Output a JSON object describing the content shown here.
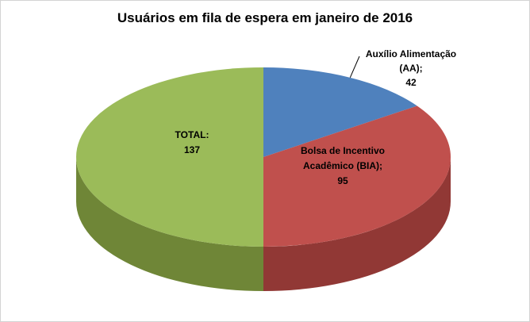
{
  "chart_data": {
    "type": "pie",
    "effect": "3d",
    "title": "Usuários em fila de espera em janeiro de 2016",
    "start_angle_deg": -90,
    "direction": "clockwise",
    "legend": "none",
    "background_color": "#FFFFFF",
    "border_color": "#D3D3D3",
    "slices": [
      {
        "id": "aa",
        "name": "Auxílio Alimentação (AA)",
        "value": 42,
        "color": "#4F81BD",
        "side_color": "#2F527B",
        "label": "Auxílio Alimentação (AA); 42",
        "label_lines": [
          "Auxílio Alimentação",
          "(AA);",
          "42"
        ],
        "label_placement": "outside-with-leader"
      },
      {
        "id": "bia",
        "name": "Bolsa de Incentivo Acadêmico (BIA)",
        "value": 95,
        "color": "#C0504D",
        "side_color": "#913835",
        "label": "Bolsa de Incentivo Acadêmico (BIA); 95",
        "label_lines": [
          "Bolsa de Incentivo",
          "Acadêmico (BIA);",
          "95"
        ],
        "label_placement": "inside"
      },
      {
        "id": "total",
        "name": "TOTAL",
        "value": 137,
        "color": "#9BBB59",
        "side_color": "#6F8637",
        "label": "TOTAL: 137",
        "label_lines": [
          "TOTAL:",
          "137"
        ],
        "label_placement": "inside"
      }
    ]
  }
}
